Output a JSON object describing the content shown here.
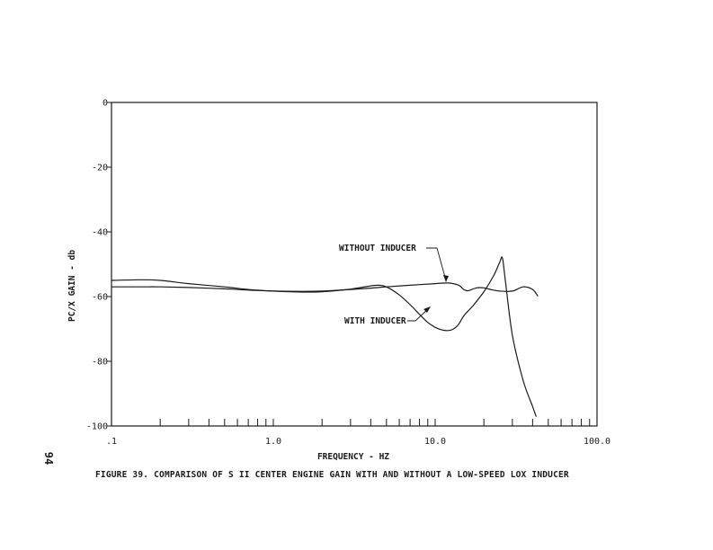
{
  "caption": "FIGURE 39.  COMPARISON OF S II CENTER ENGINE GAIN WITH AND WITHOUT A LOW-SPEED LOX INDUCER",
  "page_number": "94",
  "chart_data": {
    "type": "line",
    "title": "",
    "xlabel": "FREQUENCY - HZ",
    "ylabel": "PC/X GAIN - db",
    "x_scale": "log",
    "xlim": [
      0.1,
      100
    ],
    "ylim": [
      -100,
      0
    ],
    "x_tick_labels": [
      {
        "value": 0.1,
        "label": ".1"
      },
      {
        "value": 1,
        "label": "1.0"
      },
      {
        "value": 10,
        "label": "10.0"
      },
      {
        "value": 100,
        "label": "100.0"
      }
    ],
    "y_ticks": [
      {
        "value": 0,
        "label": "0"
      },
      {
        "value": -20,
        "label": "-20"
      },
      {
        "value": -40,
        "label": "-40"
      },
      {
        "value": -60,
        "label": "-60"
      },
      {
        "value": -80,
        "label": "-80"
      },
      {
        "value": -100,
        "label": "-100"
      }
    ],
    "grid": false,
    "legend": "none",
    "series": [
      {
        "name": "WITHOUT INDUCER",
        "x": [
          0.1,
          0.15,
          0.2,
          0.3,
          0.5,
          0.7,
          1.0,
          1.5,
          2.0,
          3.0,
          4.0,
          5.0,
          7.0,
          10.0,
          12.0,
          14.0,
          15.0,
          16.0,
          18.0,
          20.0,
          22.0,
          25.0,
          30.0,
          35.0,
          40.0,
          43.0
        ],
        "y": [
          -57,
          -57,
          -57,
          -57.2,
          -57.6,
          -58,
          -58.3,
          -58.4,
          -58.3,
          -57.8,
          -57.4,
          -57,
          -56.5,
          -56,
          -55.8,
          -56.5,
          -57.8,
          -58.2,
          -57.3,
          -57.3,
          -57.8,
          -58.3,
          -58.3,
          -57,
          -57.8,
          -59.8
        ]
      },
      {
        "name": "WITH INDUCER",
        "x": [
          0.1,
          0.15,
          0.2,
          0.3,
          0.5,
          0.7,
          1.0,
          1.5,
          2.0,
          3.0,
          4.0,
          4.5,
          5.0,
          6.0,
          7.0,
          8.0,
          9.0,
          10.0,
          11.0,
          12.0,
          13.0,
          14.0,
          15.0,
          17.0,
          20.0,
          23.0,
          25.0,
          26.0,
          27.0,
          30.0,
          35.0,
          40.0,
          42.0
        ],
        "y": [
          -55,
          -54.8,
          -55,
          -56,
          -57,
          -57.8,
          -58.3,
          -58.6,
          -58.5,
          -57.7,
          -56.7,
          -56.5,
          -57,
          -59.5,
          -62.5,
          -65.5,
          -68,
          -69.5,
          -70.3,
          -70.5,
          -70,
          -68.5,
          -66,
          -63,
          -58.5,
          -53.5,
          -49.5,
          -48,
          -54,
          -72,
          -86,
          -94,
          -97
        ]
      }
    ],
    "annotations": [
      {
        "text": "WITHOUT INDUCER",
        "series": "WITHOUT INDUCER"
      },
      {
        "text": "WITH INDUCER",
        "series": "WITH INDUCER"
      }
    ],
    "colors": {
      "line": "#1a1a1a",
      "axis": "#1a1a1a",
      "background": "#ffffff"
    }
  }
}
